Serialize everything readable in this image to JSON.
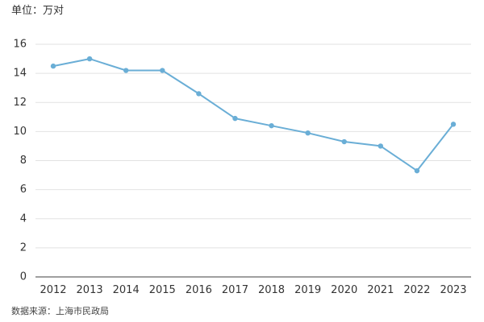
{
  "header": {
    "unit_label": "单位：万对"
  },
  "footer": {
    "source": "数据来源：上海市民政局"
  },
  "colors": {
    "line": "#6aaed6",
    "grid": "#e2e2e2"
  },
  "chart_data": {
    "type": "line",
    "title": "",
    "xlabel": "",
    "ylabel": "",
    "x": [
      "2012",
      "2013",
      "2014",
      "2015",
      "2016",
      "2017",
      "2018",
      "2019",
      "2020",
      "2021",
      "2022",
      "2023"
    ],
    "series": [
      {
        "values": [
          14.5,
          15.0,
          14.2,
          14.2,
          12.6,
          10.9,
          10.4,
          9.9,
          9.3,
          9.0,
          7.3,
          10.5
        ]
      }
    ],
    "ylim": [
      0,
      16
    ],
    "yticks": [
      "0",
      "2",
      "4",
      "6",
      "8",
      "10",
      "12",
      "14",
      "16"
    ],
    "grid": true,
    "legend": "none"
  }
}
